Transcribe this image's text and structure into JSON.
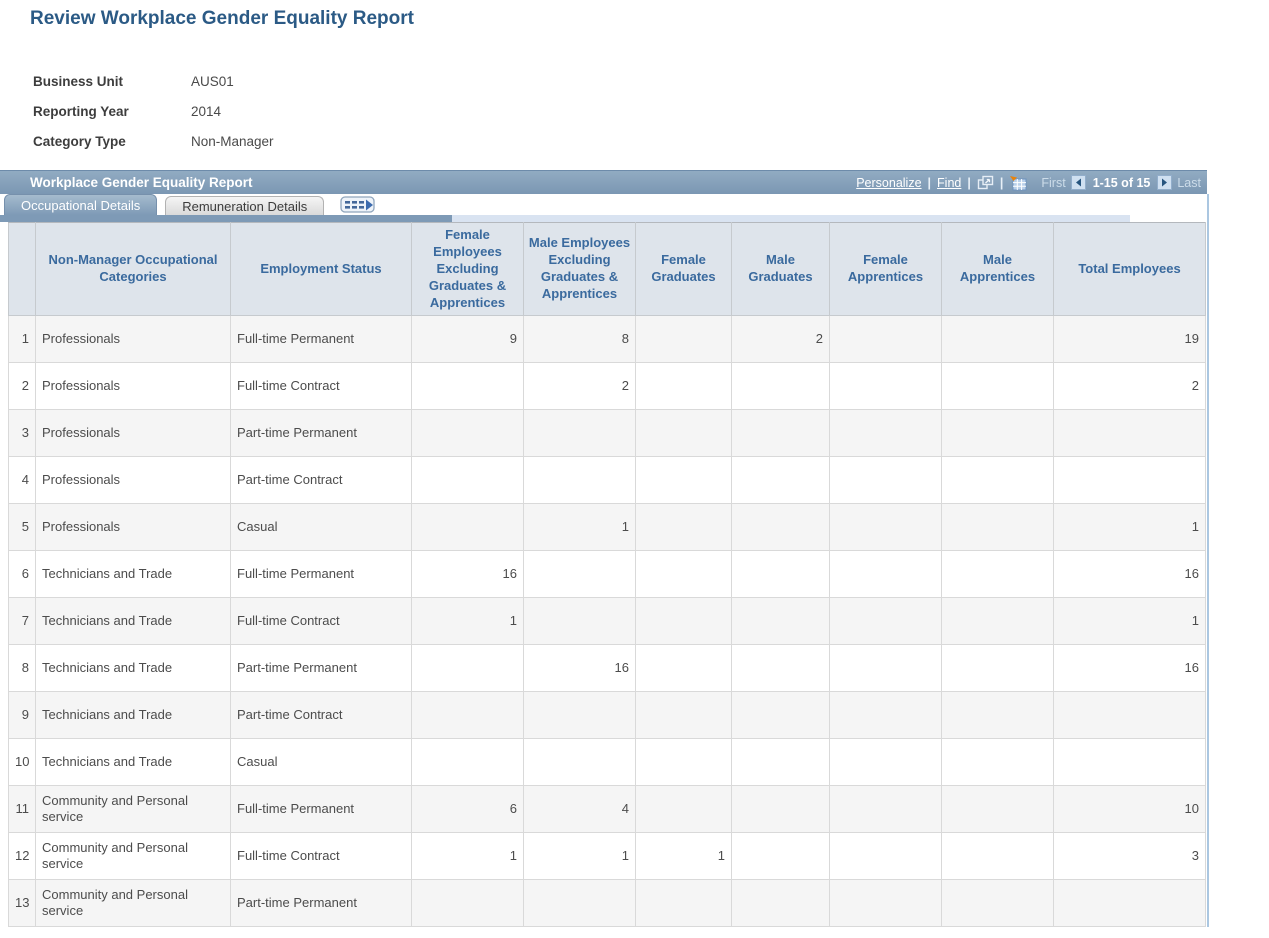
{
  "page_title": "Review Workplace Gender Equality Report",
  "fields": [
    {
      "label": "Business Unit",
      "value": "AUS01"
    },
    {
      "label": "Reporting Year",
      "value": "2014"
    },
    {
      "label": "Category Type",
      "value": "Non-Manager"
    }
  ],
  "grid": {
    "title": "Workplace Gender Equality Report",
    "toolbar": {
      "personalize": "Personalize",
      "find": "Find",
      "separator": "|",
      "icons": {
        "popout": "open-in-new-window-icon",
        "download": "download-to-excel-grid-icon"
      }
    },
    "pagination": {
      "first": "First",
      "prev_icon": "previous-arrow-icon",
      "range": "1-15 of 15",
      "next_icon": "next-arrow-icon",
      "last": "Last"
    },
    "tabs": [
      {
        "label": "Occupational Details",
        "active": true
      },
      {
        "label": "Remuneration Details",
        "active": false
      }
    ],
    "show_all_columns_icon": "show-all-columns-icon",
    "columns": [
      {
        "key": "category",
        "label": "Non-Manager Occupational Categories"
      },
      {
        "key": "status",
        "label": "Employment Status"
      },
      {
        "key": "female_emp",
        "label": "Female Employees Excluding Graduates & Apprentices"
      },
      {
        "key": "male_emp",
        "label": "Male Employees Excluding Graduates & Apprentices"
      },
      {
        "key": "female_grad",
        "label": "Female Graduates"
      },
      {
        "key": "male_grad",
        "label": "Male Graduates"
      },
      {
        "key": "female_appr",
        "label": "Female Apprentices"
      },
      {
        "key": "male_appr",
        "label": "Male Apprentices"
      },
      {
        "key": "total",
        "label": "Total Employees"
      }
    ],
    "rows": [
      {
        "num": "1",
        "category": "Professionals",
        "status": "Full-time Permanent",
        "female_emp": "9",
        "male_emp": "8",
        "female_grad": "",
        "male_grad": "2",
        "female_appr": "",
        "male_appr": "",
        "total": "19"
      },
      {
        "num": "2",
        "category": "Professionals",
        "status": "Full-time Contract",
        "female_emp": "",
        "male_emp": "2",
        "female_grad": "",
        "male_grad": "",
        "female_appr": "",
        "male_appr": "",
        "total": "2"
      },
      {
        "num": "3",
        "category": "Professionals",
        "status": "Part-time Permanent",
        "female_emp": "",
        "male_emp": "",
        "female_grad": "",
        "male_grad": "",
        "female_appr": "",
        "male_appr": "",
        "total": ""
      },
      {
        "num": "4",
        "category": "Professionals",
        "status": "Part-time Contract",
        "female_emp": "",
        "male_emp": "",
        "female_grad": "",
        "male_grad": "",
        "female_appr": "",
        "male_appr": "",
        "total": ""
      },
      {
        "num": "5",
        "category": "Professionals",
        "status": "Casual",
        "female_emp": "",
        "male_emp": "1",
        "female_grad": "",
        "male_grad": "",
        "female_appr": "",
        "male_appr": "",
        "total": "1"
      },
      {
        "num": "6",
        "category": "Technicians and Trade",
        "status": "Full-time Permanent",
        "female_emp": "16",
        "male_emp": "",
        "female_grad": "",
        "male_grad": "",
        "female_appr": "",
        "male_appr": "",
        "total": "16"
      },
      {
        "num": "7",
        "category": "Technicians and Trade",
        "status": "Full-time Contract",
        "female_emp": "1",
        "male_emp": "",
        "female_grad": "",
        "male_grad": "",
        "female_appr": "",
        "male_appr": "",
        "total": "1"
      },
      {
        "num": "8",
        "category": "Technicians and Trade",
        "status": "Part-time Permanent",
        "female_emp": "",
        "male_emp": "16",
        "female_grad": "",
        "male_grad": "",
        "female_appr": "",
        "male_appr": "",
        "total": "16"
      },
      {
        "num": "9",
        "category": "Technicians and Trade",
        "status": "Part-time Contract",
        "female_emp": "",
        "male_emp": "",
        "female_grad": "",
        "male_grad": "",
        "female_appr": "",
        "male_appr": "",
        "total": ""
      },
      {
        "num": "10",
        "category": "Technicians and Trade",
        "status": "Casual",
        "female_emp": "",
        "male_emp": "",
        "female_grad": "",
        "male_grad": "",
        "female_appr": "",
        "male_appr": "",
        "total": ""
      },
      {
        "num": "11",
        "category": "Community and Personal service",
        "status": "Full-time Permanent",
        "female_emp": "6",
        "male_emp": "4",
        "female_grad": "",
        "male_grad": "",
        "female_appr": "",
        "male_appr": "",
        "total": "10"
      },
      {
        "num": "12",
        "category": "Community and Personal service",
        "status": "Full-time Contract",
        "female_emp": "1",
        "male_emp": "1",
        "female_grad": "1",
        "male_grad": "",
        "female_appr": "",
        "male_appr": "",
        "total": "3"
      },
      {
        "num": "13",
        "category": "Community and Personal service",
        "status": "Part-time Permanent",
        "female_emp": "",
        "male_emp": "",
        "female_grad": "",
        "male_grad": "",
        "female_appr": "",
        "male_appr": "",
        "total": ""
      }
    ]
  },
  "colors": {
    "page_title": "#2b5a85",
    "grid_bar": "#7e9ab6",
    "grid_bar_light": "#d9e3f1",
    "column_header_text": "#3a6a9e",
    "column_header_bg": "#dee4eb",
    "row_stripe": "#f5f5f5",
    "excel_arrow_orange": "#e8830c",
    "pagination_button_bg": "#cfe0f1"
  }
}
